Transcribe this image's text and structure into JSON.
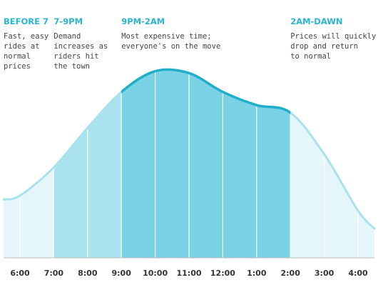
{
  "chart_data": {
    "type": "area",
    "categories": [
      "6:00",
      "7:00",
      "8:00",
      "9:00",
      "10:00",
      "11:00",
      "12:00",
      "1:00",
      "2:00",
      "3:00",
      "4:00"
    ],
    "values": [
      33,
      48,
      69,
      88,
      99,
      98,
      88,
      81,
      77,
      55,
      25
    ],
    "color": "#a8e2ed",
    "bands": [
      {
        "title": "BEFORE 7",
        "text": [
          "Fast, easy",
          "rides at",
          "normal",
          "prices"
        ],
        "start": null,
        "end": "7:00",
        "color": "#e5f6fa",
        "line_color": "#a8e2ed"
      },
      {
        "title": "7-9PM",
        "text": [
          "Demand",
          "increases as",
          "riders hit",
          "the town"
        ],
        "start": "7:00",
        "end": "9:00",
        "color": "#aae3ee",
        "line_color": "#a8e2ed"
      },
      {
        "title": "9PM-2AM",
        "text": [
          "Most expensive time;",
          "everyone's on the move"
        ],
        "start": "9:00",
        "end": "2:00",
        "color": "#79d3e5",
        "line_color": "#21aec9"
      },
      {
        "title": "2AM-DAWN",
        "text": [
          "Prices will quickly",
          "drop and return",
          "to normal"
        ],
        "start": "2:00",
        "end": null,
        "color": "#e5f6fa",
        "line_color": "#a8e2ed"
      }
    ]
  }
}
